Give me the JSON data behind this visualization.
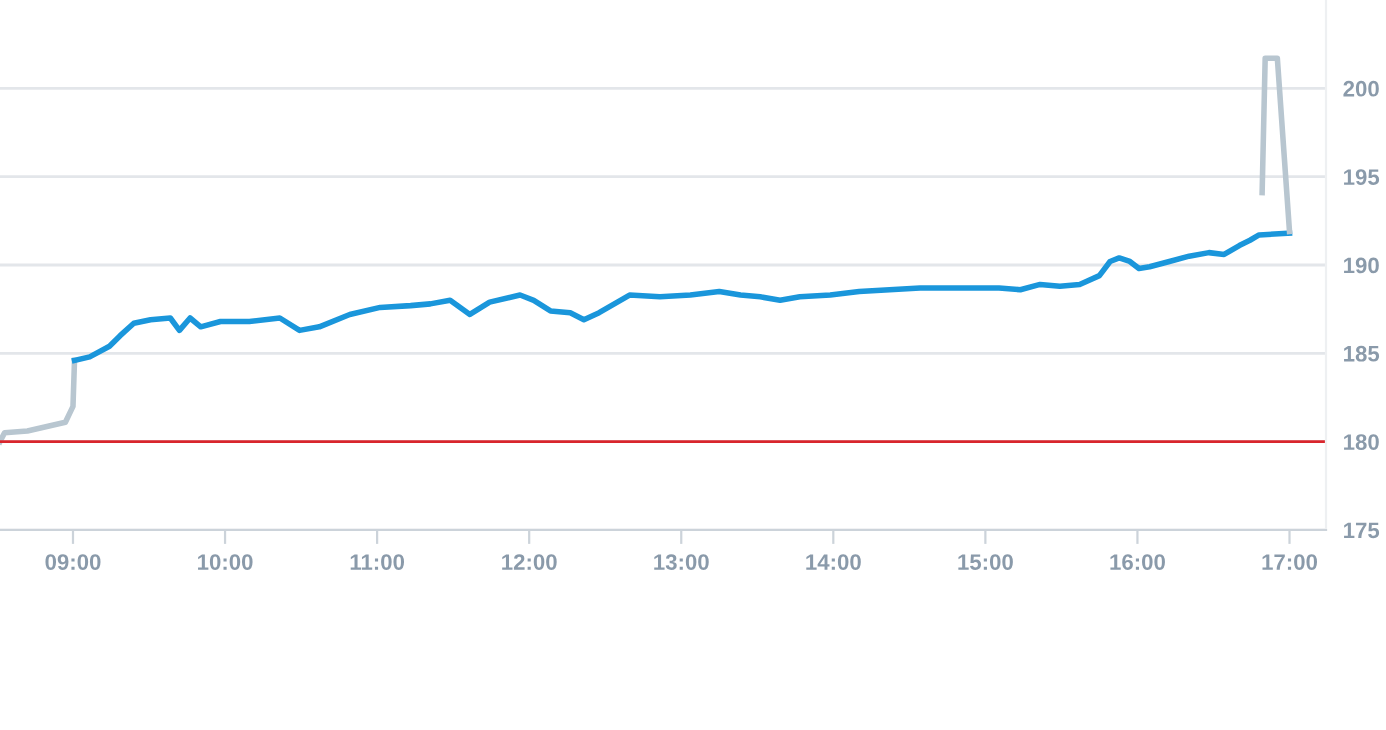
{
  "chart_data": {
    "type": "line",
    "xlim": [
      8.52,
      17.24
    ],
    "ylim": [
      175,
      205
    ],
    "xticks": [
      {
        "value": 9,
        "label": "09:00"
      },
      {
        "value": 10,
        "label": "10:00"
      },
      {
        "value": 11,
        "label": "11:00"
      },
      {
        "value": 12,
        "label": "12:00"
      },
      {
        "value": 13,
        "label": "13:00"
      },
      {
        "value": 14,
        "label": "14:00"
      },
      {
        "value": 15,
        "label": "15:00"
      },
      {
        "value": 16,
        "label": "16:00"
      },
      {
        "value": 17,
        "label": "17:00"
      }
    ],
    "yticks": [
      175,
      180,
      185,
      190,
      195,
      200
    ],
    "grid": "y",
    "legend": false,
    "marker": "none",
    "line_style": "solid",
    "ref_lines": [
      {
        "axis": "y",
        "value": 180,
        "color": "#d9262c"
      }
    ],
    "series": [
      {
        "color": "#b8c6d0",
        "x": [
          8.52,
          8.55,
          8.7,
          8.85,
          8.95,
          9.0,
          9.01
        ],
        "values": [
          180.0,
          180.5,
          180.6,
          180.9,
          181.1,
          182.0,
          184.6
        ]
      },
      {
        "color": "#1a96db",
        "x": [
          9.01,
          9.11,
          9.24,
          9.31,
          9.4,
          9.51,
          9.64,
          9.7,
          9.77,
          9.84,
          9.97,
          10.16,
          10.36,
          10.49,
          10.62,
          10.82,
          11.02,
          11.22,
          11.35,
          11.48,
          11.61,
          11.74,
          11.94,
          12.03,
          12.14,
          12.27,
          12.36,
          12.46,
          12.66,
          12.86,
          13.06,
          13.25,
          13.39,
          13.52,
          13.65,
          13.78,
          13.98,
          14.17,
          14.37,
          14.57,
          14.77,
          14.96,
          15.09,
          15.23,
          15.36,
          15.49,
          15.62,
          15.75,
          15.82,
          15.88,
          15.95,
          16.01,
          16.08,
          16.21,
          16.34,
          16.47,
          16.57,
          16.67,
          16.74,
          16.8,
          17.0
        ],
        "values": [
          184.6,
          184.8,
          185.4,
          186.0,
          186.7,
          186.9,
          187.0,
          186.3,
          187.0,
          186.5,
          186.8,
          186.8,
          187.0,
          186.3,
          186.5,
          187.2,
          187.6,
          187.7,
          187.8,
          188.0,
          187.2,
          187.9,
          188.3,
          188.0,
          187.4,
          187.3,
          186.9,
          187.3,
          188.3,
          188.2,
          188.3,
          188.5,
          188.3,
          188.2,
          188.0,
          188.2,
          188.3,
          188.5,
          188.6,
          188.7,
          188.7,
          188.7,
          188.7,
          188.6,
          188.9,
          188.8,
          188.9,
          189.4,
          190.2,
          190.4,
          190.2,
          189.8,
          189.9,
          190.2,
          190.5,
          190.7,
          190.6,
          191.1,
          191.4,
          191.7,
          191.8
        ]
      },
      {
        "color": "#b8c6d0",
        "x": [
          16.82,
          16.84,
          16.92,
          17.0
        ],
        "values": [
          194.1,
          201.7,
          201.7,
          191.9
        ]
      }
    ]
  }
}
